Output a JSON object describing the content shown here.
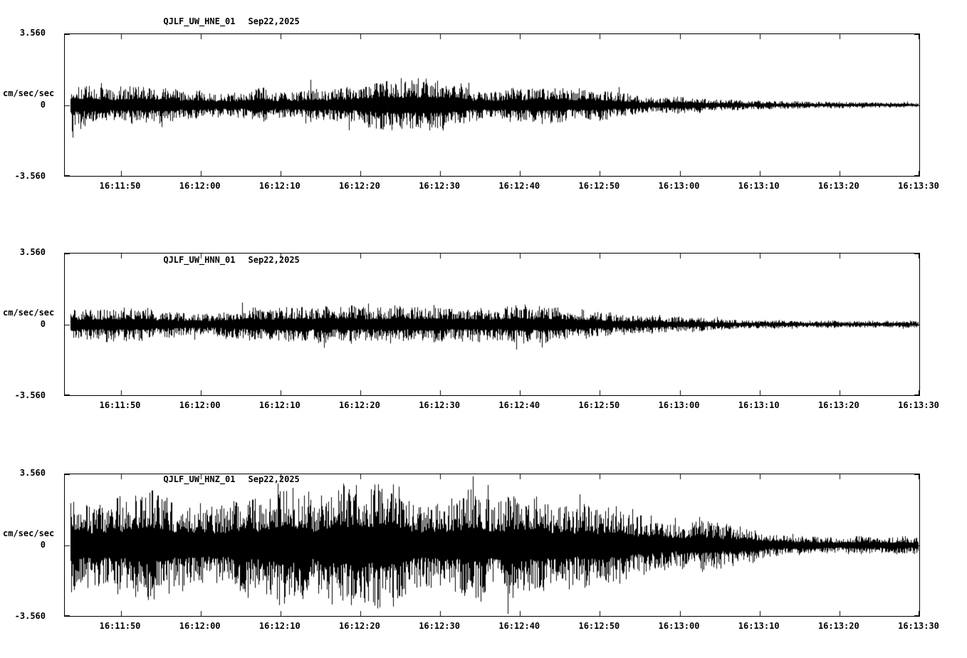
{
  "colors": {
    "background": "#ffffff",
    "trace": "#000000",
    "text": "#000000"
  },
  "chart_data": [
    {
      "type": "line",
      "subtype": "seismogram",
      "title": "QJLF_UW_HNE_01",
      "date": "Sep22,2025",
      "ylabel": "cm/sec/sec",
      "ylim": [
        -3.56,
        3.56
      ],
      "y_tick_labels": [
        "3.560",
        "0",
        "-3.560"
      ],
      "x_start": "16:11:43",
      "x_end": "16:13:30",
      "x_tick_labels": [
        "16:11:50",
        "16:12:00",
        "16:12:10",
        "16:12:20",
        "16:12:30",
        "16:12:40",
        "16:12:50",
        "16:13:00",
        "16:13:10",
        "16:13:20",
        "16:13:30"
      ],
      "envelope_units": "cm/sec/sec approximate half peak-to-peak amplitude",
      "envelope": {
        "t_frac": [
          0.0,
          0.03,
          0.07,
          0.12,
          0.18,
          0.24,
          0.3,
          0.36,
          0.42,
          0.48,
          0.54,
          0.6,
          0.64,
          0.68,
          0.72,
          0.76,
          0.8,
          0.85,
          0.9,
          0.95,
          1.0
        ],
        "amplitude": [
          1.05,
          0.85,
          0.8,
          0.85,
          0.8,
          0.85,
          0.95,
          1.1,
          1.15,
          1.0,
          0.9,
          0.8,
          0.65,
          0.5,
          0.38,
          0.28,
          0.22,
          0.17,
          0.15,
          0.13,
          0.13
        ]
      }
    },
    {
      "type": "line",
      "subtype": "seismogram",
      "title": "QJLF_UW_HNN_01",
      "date": "Sep22,2025",
      "ylabel": "cm/sec/sec",
      "ylim": [
        -3.56,
        3.56
      ],
      "y_tick_labels": [
        "3.560",
        "0",
        "-3.560"
      ],
      "x_start": "16:11:43",
      "x_end": "16:13:30",
      "x_tick_labels": [
        "16:11:50",
        "16:12:00",
        "16:12:10",
        "16:12:20",
        "16:12:30",
        "16:12:40",
        "16:12:50",
        "16:13:00",
        "16:13:10",
        "16:13:20",
        "16:13:30"
      ],
      "envelope_units": "cm/sec/sec approximate half peak-to-peak amplitude",
      "envelope": {
        "t_frac": [
          0.0,
          0.03,
          0.07,
          0.12,
          0.18,
          0.24,
          0.3,
          0.36,
          0.42,
          0.48,
          0.54,
          0.6,
          0.64,
          0.68,
          0.72,
          0.76,
          0.8,
          0.85,
          0.9,
          0.95,
          1.0
        ],
        "amplitude": [
          0.75,
          0.8,
          0.75,
          0.8,
          0.72,
          0.75,
          0.8,
          0.85,
          0.8,
          0.75,
          0.85,
          0.8,
          0.7,
          0.55,
          0.42,
          0.33,
          0.27,
          0.22,
          0.18,
          0.16,
          0.15
        ]
      }
    },
    {
      "type": "line",
      "subtype": "seismogram",
      "title": "QJLF_UW_HNZ_01",
      "date": "Sep22,2025",
      "ylabel": "cm/sec/sec",
      "ylim": [
        -3.56,
        3.56
      ],
      "y_tick_labels": [
        "3.560",
        "0",
        "-3.560"
      ],
      "x_start": "16:11:43",
      "x_end": "16:13:30",
      "x_tick_labels": [
        "16:11:50",
        "16:12:00",
        "16:12:10",
        "16:12:20",
        "16:12:30",
        "16:12:40",
        "16:12:50",
        "16:13:00",
        "16:13:10",
        "16:13:20",
        "16:13:30"
      ],
      "envelope_units": "cm/sec/sec approximate half peak-to-peak amplitude",
      "envelope": {
        "t_frac": [
          0.0,
          0.03,
          0.07,
          0.12,
          0.18,
          0.24,
          0.3,
          0.36,
          0.42,
          0.48,
          0.54,
          0.6,
          0.64,
          0.68,
          0.72,
          0.76,
          0.8,
          0.85,
          0.9,
          0.95,
          1.0
        ],
        "amplitude": [
          2.3,
          2.7,
          2.5,
          2.6,
          2.7,
          2.8,
          2.75,
          2.85,
          2.8,
          2.9,
          2.8,
          2.6,
          2.3,
          1.9,
          1.4,
          1.05,
          0.8,
          0.62,
          0.55,
          0.5,
          0.48
        ]
      }
    }
  ]
}
